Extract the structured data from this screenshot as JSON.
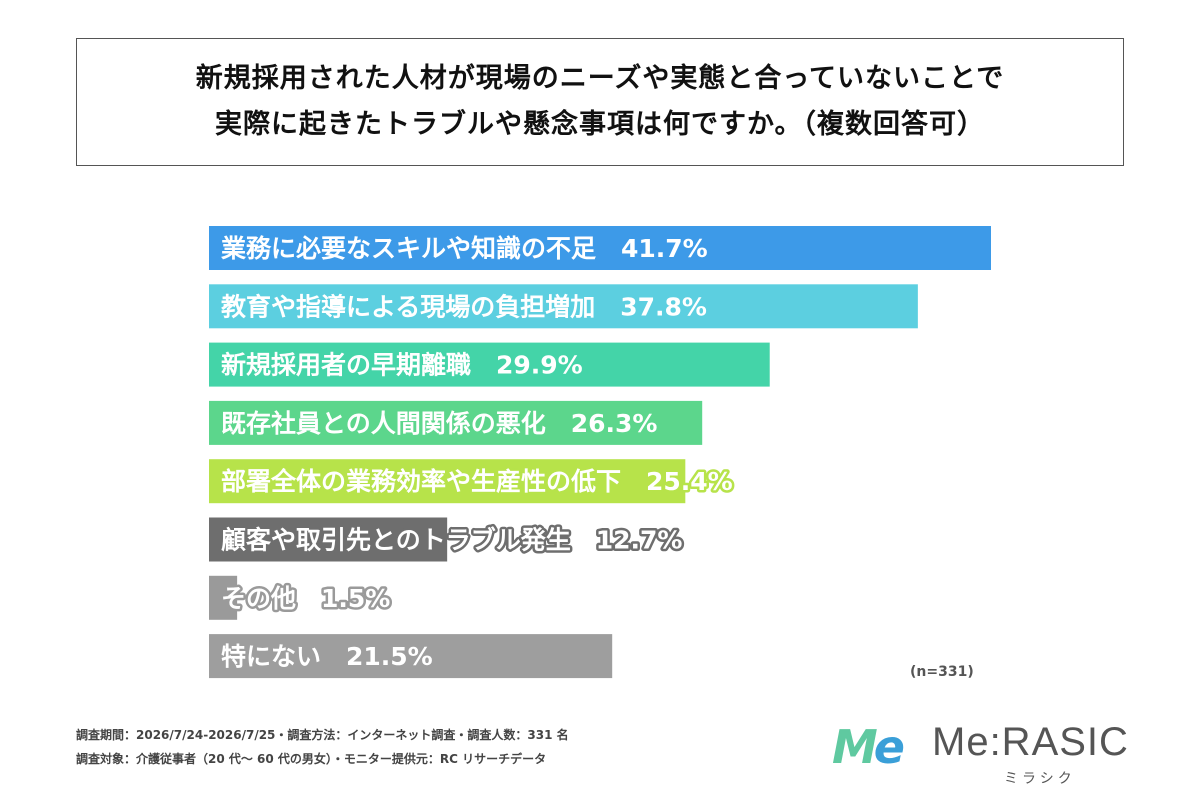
{
  "title": {
    "line1": "新規採用された人材が現場のニーズや実態と合っていないことで",
    "line2": "実際に起きたトラブルや懸念事項は何ですか。（複数回答可）"
  },
  "chart_data": {
    "type": "bar",
    "orientation": "horizontal",
    "categories": [
      "業務に必要なスキルや知識の不足",
      "教育や指導による現場の負担増加",
      "新規採用者の早期離職",
      "既存社員との人間関係の悪化",
      "部署全体の業務効率や生産性の低下",
      "顧客や取引先とのトラブル発生",
      "その他",
      "特にない"
    ],
    "values": [
      41.7,
      37.8,
      29.9,
      26.3,
      25.4,
      12.7,
      1.5,
      21.5
    ],
    "value_labels": [
      "41.7%",
      "37.8%",
      "29.9%",
      "26.3%",
      "25.4%",
      "12.7%",
      "1.5%",
      "21.5%"
    ],
    "colors": [
      "#3d9ae8",
      "#5ccfe0",
      "#44d4a8",
      "#5cd68c",
      "#b7e34a",
      "#6e6e6e",
      "#9a9a9a",
      "#9e9e9e"
    ],
    "label_outline_colors": [
      "none",
      "none",
      "none",
      "#5cd68c",
      "#b7e34a",
      "#6e6e6e",
      "#9a9a9a",
      "none"
    ],
    "xlim": [
      0,
      41.7
    ]
  },
  "note": "(n=331)",
  "footer": {
    "line1": "調査期間：2026/7/24-2026/7/25・調査方法：インターネット調査・調査人数：331 名",
    "line2": "調査対象：介護従事者（20 代～ 60 代の男女）・モニター提供元：RC リサーチデータ"
  },
  "logo": {
    "mark": "Me",
    "name": "Me:RASIC",
    "sub": "ミラシク"
  }
}
